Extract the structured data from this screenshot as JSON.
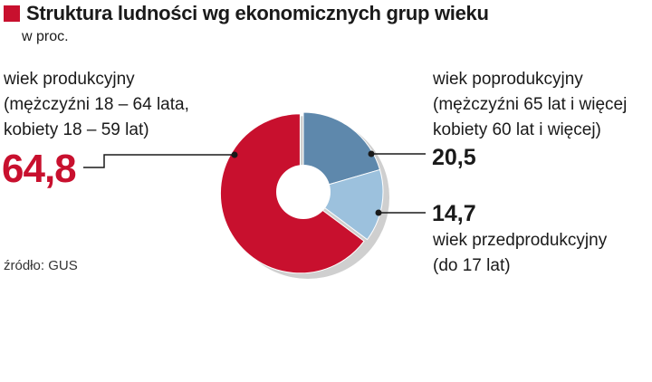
{
  "title": "Struktura ludności wg ekonomicznych grup wieku",
  "subtitle": "w proc.",
  "source": "źródło: GUS",
  "colors": {
    "accent": "#c8102e",
    "productive": "#c8102e",
    "post_productive": "#5e88ac",
    "pre_productive": "#9cc1dd",
    "donut_hole": "#ffffff",
    "shadow": "#cfcfcf"
  },
  "labels": {
    "productive": {
      "line1": "wiek produkcyjny",
      "line2": "(mężczyźni 18 – 64 lata,",
      "line3": "kobiety 18 – 59 lat)",
      "value": "64,8"
    },
    "post_productive": {
      "line1": "wiek poprodukcyjny",
      "line2": "(mężczyźni 65 lat i więcej",
      "line3": "kobiety 60 lat i więcej)",
      "value": "20,5"
    },
    "pre_productive": {
      "value": "14,7",
      "line1": "wiek przedprodukcyjny",
      "line2": "(do 17 lat)"
    }
  },
  "chart_data": {
    "type": "pie",
    "title": "Struktura ludności wg ekonomicznych grup wieku",
    "subtitle": "w proc.",
    "categories": [
      "wiek poprodukcyjny",
      "wiek przedprodukcyjny",
      "wiek produkcyjny"
    ],
    "values": [
      20.5,
      14.7,
      64.8
    ],
    "legend": "none"
  }
}
